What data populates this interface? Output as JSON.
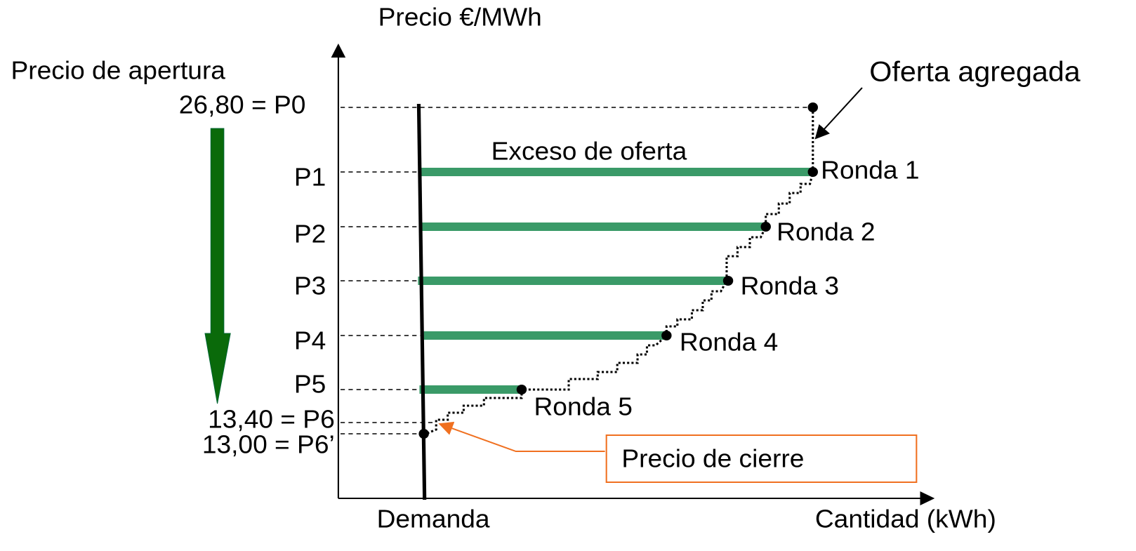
{
  "axes": {
    "y_label": "Precio €/MWh",
    "x_label": "Cantidad (kWh)"
  },
  "opening": {
    "label": "Precio de apertura",
    "p0": "26,80 = P0"
  },
  "price_levels": [
    "P1",
    "P2",
    "P3",
    "P4",
    "P5"
  ],
  "p6": "13,40 = P6",
  "p6_prime": "13,00 = P6’",
  "rounds": [
    "Ronda 1",
    "Ronda 2",
    "Ronda 3",
    "Ronda 4",
    "Ronda 5"
  ],
  "labels": {
    "excess": "Exceso de oferta",
    "supply": "Oferta agregada",
    "demand": "Demanda",
    "closing": "Precio de cierre"
  }
}
